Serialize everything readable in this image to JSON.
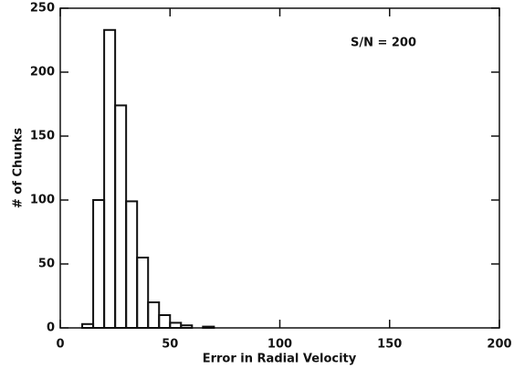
{
  "chart_data": {
    "type": "histogram",
    "xlabel": "Error in Radial Velocity",
    "ylabel": "# of Chunks",
    "annotation": "S/N = 200",
    "bins": [
      10,
      15,
      20,
      25,
      30,
      35,
      40,
      45,
      50,
      55,
      60,
      65,
      70,
      75
    ],
    "counts": [
      3,
      100,
      233,
      174,
      99,
      55,
      20,
      10,
      4,
      2,
      0,
      1,
      0
    ],
    "color": "#111111",
    "xlim": [
      0,
      200
    ],
    "xticks": [
      0,
      50,
      100,
      150,
      200
    ],
    "ylim": [
      0,
      250
    ],
    "yticks": [
      0,
      50,
      100,
      150,
      200,
      250
    ]
  }
}
